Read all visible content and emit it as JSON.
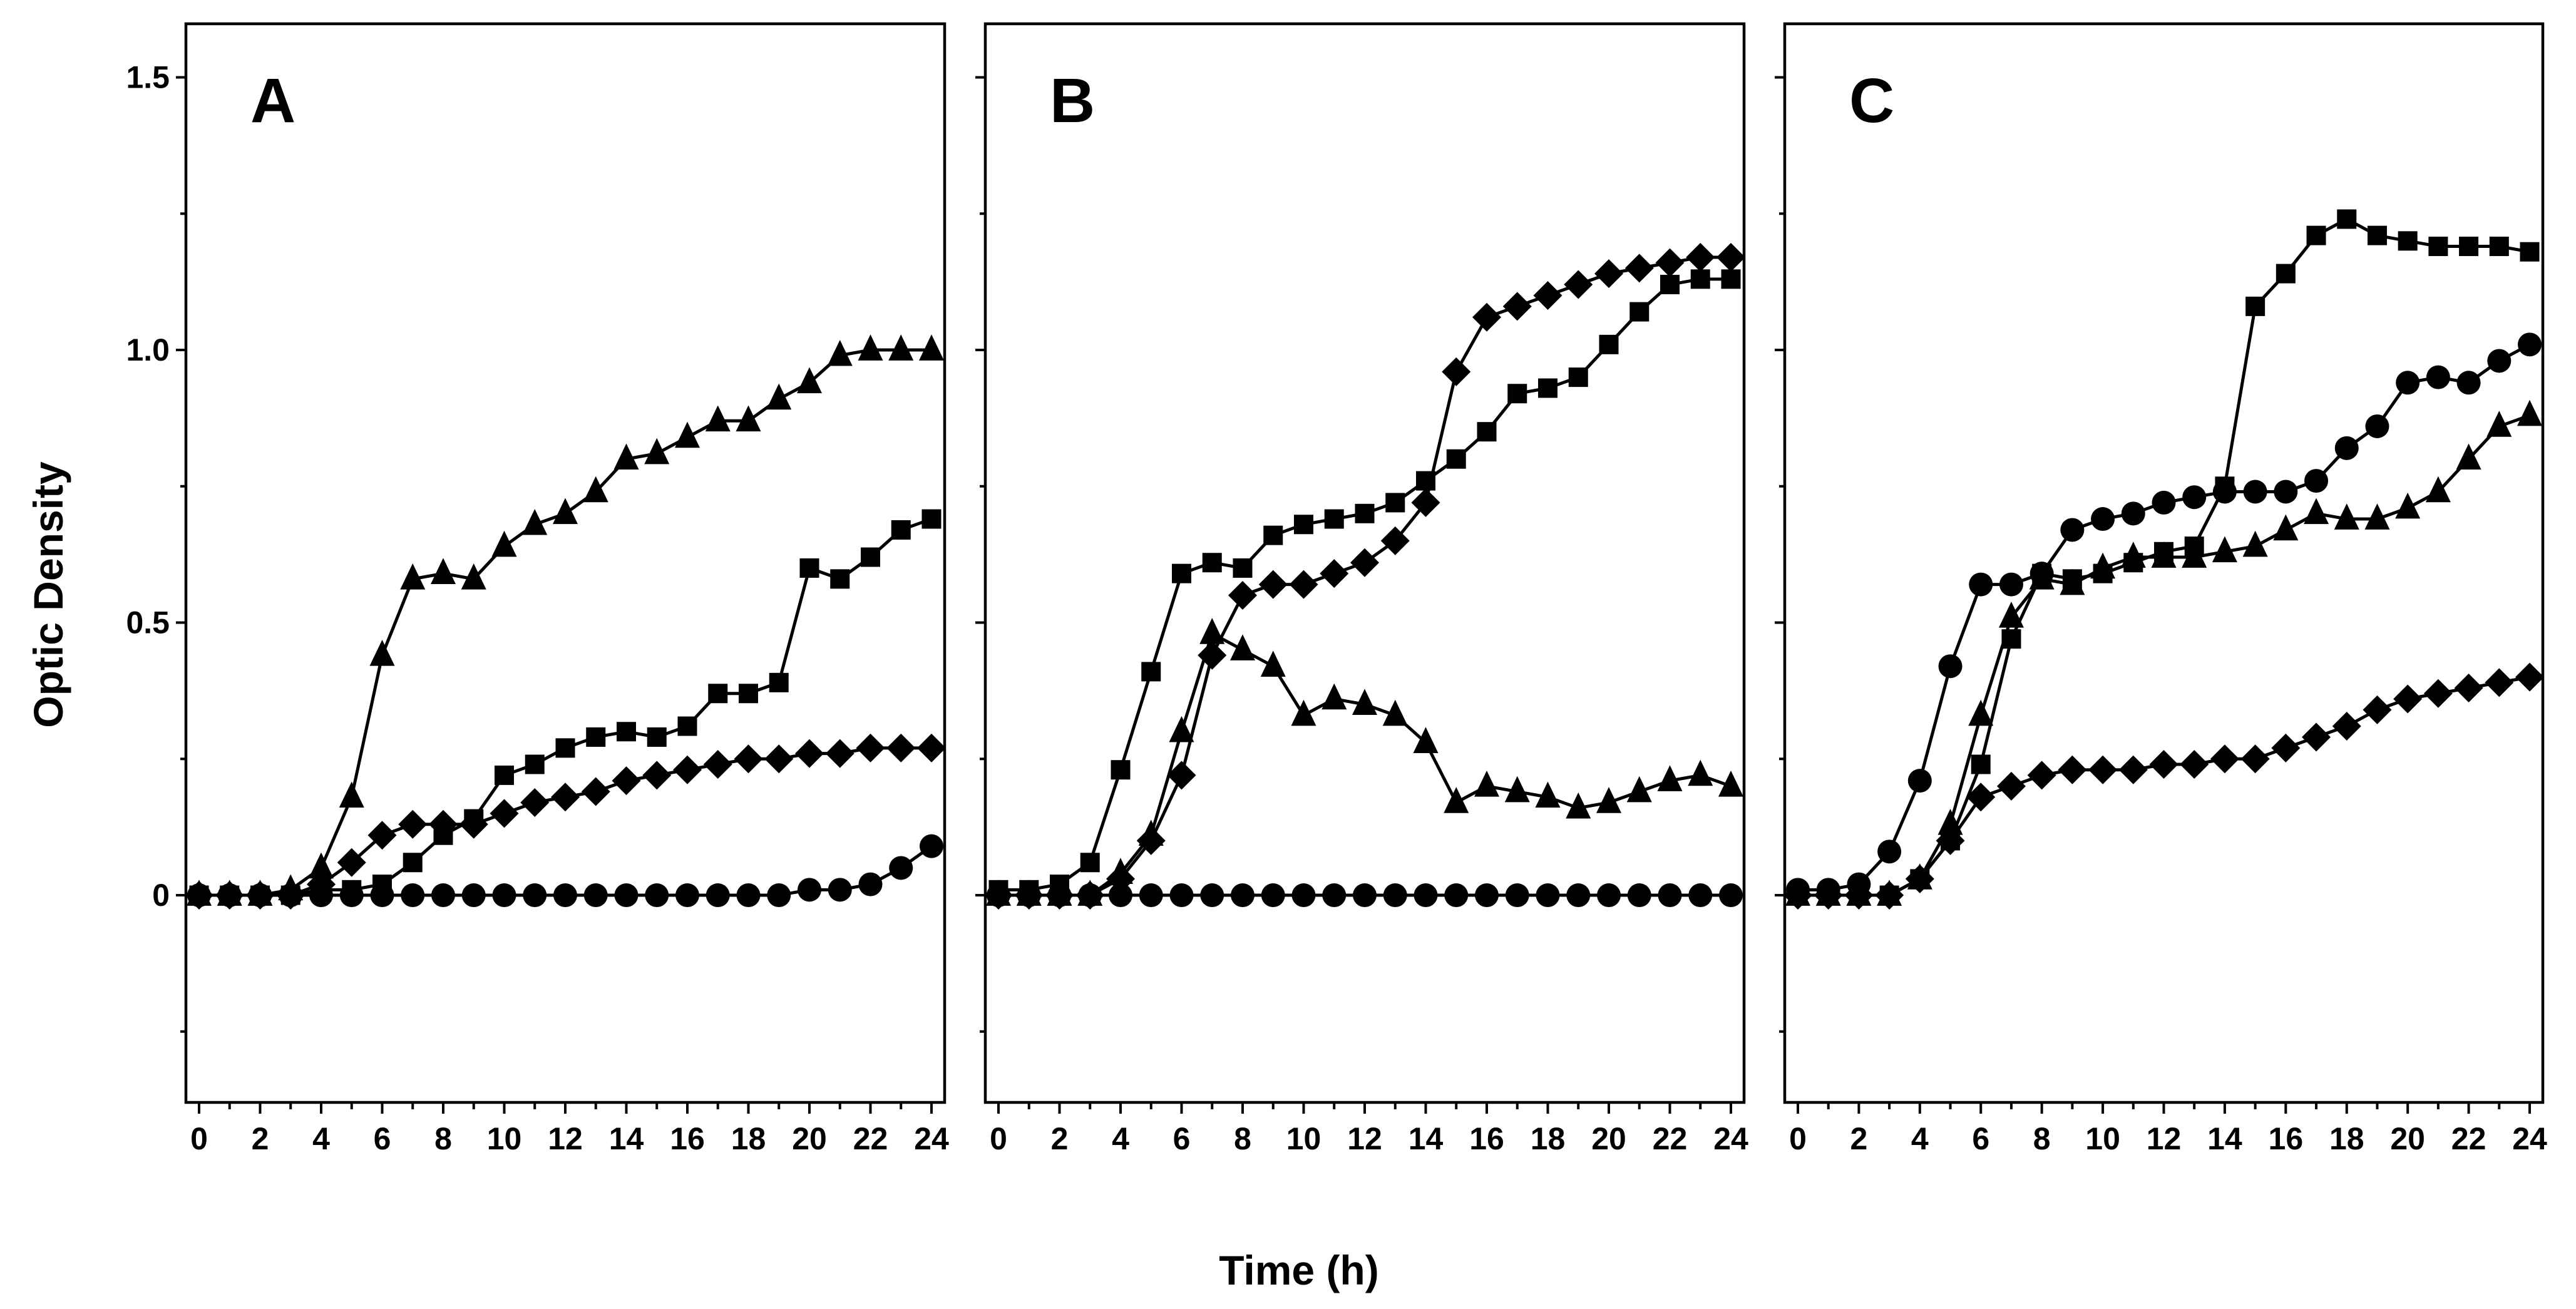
{
  "chart_data": {
    "type": "line",
    "xlabel": "Time (h)",
    "ylabel": "Optic Density",
    "ylim": [
      -0.38,
      1.55
    ],
    "xlim": [
      -0.5,
      24.5
    ],
    "grid": false,
    "yticks": [
      1.5,
      1.0,
      0.5,
      0
    ],
    "ytick_labels": [
      "1.5",
      "1.0",
      "0.5",
      "0"
    ],
    "yticks_minor": [
      1.25,
      0.75,
      0.25,
      -0.25
    ],
    "x": [
      0,
      1,
      2,
      3,
      4,
      5,
      6,
      7,
      8,
      9,
      10,
      11,
      12,
      13,
      14,
      15,
      16,
      17,
      18,
      19,
      20,
      21,
      22,
      23,
      24
    ],
    "xtick_labels": [
      "0",
      "2",
      "4",
      "6",
      "8",
      "10",
      "12",
      "14",
      "16",
      "18",
      "20",
      "22",
      "24"
    ],
    "panels": [
      {
        "label": "A",
        "series": [
          {
            "marker": "triangle",
            "values": [
              0,
              0,
              0,
              0.01,
              0.05,
              0.18,
              0.44,
              0.58,
              0.59,
              0.58,
              0.64,
              0.68,
              0.7,
              0.74,
              0.8,
              0.81,
              0.84,
              0.87,
              0.87,
              0.91,
              0.94,
              0.99,
              1.0,
              1.0,
              1.0
            ]
          },
          {
            "marker": "square",
            "values": [
              0,
              0,
              0,
              0,
              0.01,
              0.01,
              0.02,
              0.06,
              0.11,
              0.14,
              0.22,
              0.24,
              0.27,
              0.29,
              0.3,
              0.29,
              0.31,
              0.37,
              0.37,
              0.39,
              0.6,
              0.58,
              0.62,
              0.67,
              0.69
            ]
          },
          {
            "marker": "diamond",
            "values": [
              0,
              0,
              0,
              0,
              0.02,
              0.06,
              0.11,
              0.13,
              0.13,
              0.13,
              0.15,
              0.17,
              0.18,
              0.19,
              0.21,
              0.22,
              0.23,
              0.24,
              0.25,
              0.25,
              0.26,
              0.26,
              0.27,
              0.27,
              0.27
            ]
          },
          {
            "marker": "circle",
            "values": [
              0,
              0,
              0,
              0,
              0,
              0,
              0,
              0,
              0,
              0,
              0,
              0,
              0,
              0,
              0,
              0,
              0,
              0,
              0,
              0,
              0.01,
              0.01,
              0.02,
              0.05,
              0.09
            ]
          }
        ]
      },
      {
        "label": "B",
        "series": [
          {
            "marker": "square",
            "values": [
              0.01,
              0.01,
              0.02,
              0.06,
              0.23,
              0.41,
              0.59,
              0.61,
              0.6,
              0.66,
              0.68,
              0.69,
              0.7,
              0.72,
              0.76,
              0.8,
              0.85,
              0.92,
              0.93,
              0.95,
              1.01,
              1.07,
              1.12,
              1.13,
              1.13
            ]
          },
          {
            "marker": "diamond",
            "values": [
              0,
              0,
              0,
              0,
              0.03,
              0.1,
              0.22,
              0.44,
              0.55,
              0.57,
              0.57,
              0.59,
              0.61,
              0.65,
              0.72,
              0.96,
              1.06,
              1.08,
              1.1,
              1.12,
              1.14,
              1.15,
              1.16,
              1.17,
              1.17
            ]
          },
          {
            "marker": "triangle",
            "values": [
              0,
              0,
              0,
              0,
              0.04,
              0.11,
              0.3,
              0.48,
              0.45,
              0.42,
              0.33,
              0.36,
              0.35,
              0.33,
              0.28,
              0.17,
              0.2,
              0.19,
              0.18,
              0.16,
              0.17,
              0.19,
              0.21,
              0.22,
              0.2
            ]
          },
          {
            "marker": "circle",
            "values": [
              0,
              0,
              0,
              0,
              0,
              0,
              0,
              0,
              0,
              0,
              0,
              0,
              0,
              0,
              0,
              0,
              0,
              0,
              0,
              0,
              0,
              0,
              0,
              0,
              0
            ]
          }
        ]
      },
      {
        "label": "C",
        "series": [
          {
            "marker": "square",
            "values": [
              0,
              0,
              0,
              0,
              0.03,
              0.1,
              0.24,
              0.47,
              0.59,
              0.58,
              0.59,
              0.61,
              0.63,
              0.64,
              0.75,
              1.08,
              1.14,
              1.21,
              1.24,
              1.21,
              1.2,
              1.19,
              1.19,
              1.19,
              1.18
            ]
          },
          {
            "marker": "circle",
            "values": [
              0.01,
              0.01,
              0.02,
              0.08,
              0.21,
              0.42,
              0.57,
              0.57,
              0.59,
              0.67,
              0.69,
              0.7,
              0.72,
              0.73,
              0.74,
              0.74,
              0.74,
              0.76,
              0.82,
              0.86,
              0.94,
              0.95,
              0.94,
              0.98,
              1.01
            ]
          },
          {
            "marker": "triangle",
            "values": [
              0,
              0,
              0,
              0,
              0.03,
              0.13,
              0.33,
              0.51,
              0.58,
              0.57,
              0.6,
              0.62,
              0.62,
              0.62,
              0.63,
              0.64,
              0.67,
              0.7,
              0.69,
              0.69,
              0.71,
              0.74,
              0.8,
              0.86,
              0.88
            ]
          },
          {
            "marker": "diamond",
            "values": [
              0,
              0,
              0,
              0,
              0.03,
              0.1,
              0.18,
              0.2,
              0.22,
              0.23,
              0.23,
              0.23,
              0.24,
              0.24,
              0.25,
              0.25,
              0.27,
              0.29,
              0.31,
              0.34,
              0.36,
              0.37,
              0.38,
              0.39,
              0.4
            ]
          }
        ]
      }
    ]
  }
}
